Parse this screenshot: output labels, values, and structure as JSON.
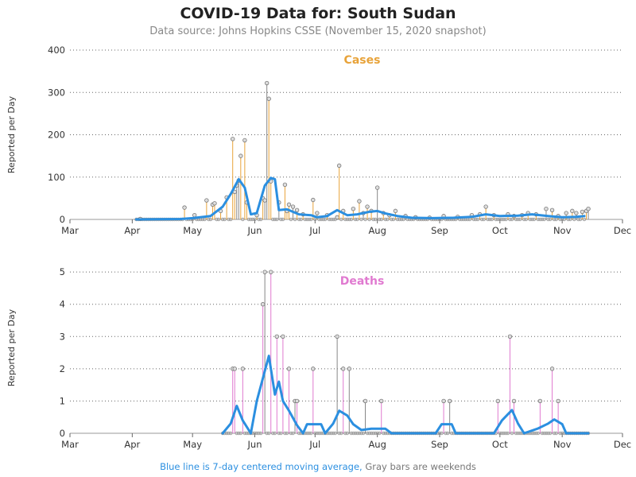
{
  "title": "COVID-19 Data for: South Sudan",
  "subtitle": "Data source: Johns Hopkins CSSE (November 15, 2020 snapshot)",
  "footnote": {
    "blue": "Blue line is 7-day centered moving average,",
    "gray": "Gray bars are weekends"
  },
  "colors": {
    "cases": "#e8a33a",
    "deaths": "#e07ad0",
    "average": "#2b8fe0",
    "weekend": "#888888"
  },
  "chart_data": [
    {
      "type": "bar",
      "title": "Cases",
      "ylabel": "Reported per Day",
      "xlabel": "",
      "x_ticks": [
        "Mar",
        "Apr",
        "May",
        "Jun",
        "Jul",
        "Aug",
        "Sep",
        "Oct",
        "Nov",
        "Dec"
      ],
      "y_ticks": [
        "0",
        "100",
        "200",
        "300",
        "400"
      ],
      "ylim": [
        0,
        400
      ],
      "xlim": [
        "2020-03-01",
        "2020-12-01"
      ],
      "grid": "horizontal dotted",
      "spikes": [
        {
          "date": "2020-04-05",
          "value": 1
        },
        {
          "date": "2020-04-27",
          "value": 28
        },
        {
          "date": "2020-05-02",
          "value": 10
        },
        {
          "date": "2020-05-08",
          "value": 45
        },
        {
          "date": "2020-05-11",
          "value": 35
        },
        {
          "date": "2020-05-12",
          "value": 38
        },
        {
          "date": "2020-05-15",
          "value": 20
        },
        {
          "date": "2020-05-18",
          "value": 52
        },
        {
          "date": "2020-05-21",
          "value": 190
        },
        {
          "date": "2020-05-22",
          "value": 65
        },
        {
          "date": "2020-05-23",
          "value": 80
        },
        {
          "date": "2020-05-24",
          "value": 92
        },
        {
          "date": "2020-05-25",
          "value": 150
        },
        {
          "date": "2020-05-27",
          "value": 187
        },
        {
          "date": "2020-05-28",
          "value": 40
        },
        {
          "date": "2020-06-02",
          "value": 10
        },
        {
          "date": "2020-06-05",
          "value": 50
        },
        {
          "date": "2020-06-06",
          "value": 45
        },
        {
          "date": "2020-06-07",
          "value": 322
        },
        {
          "date": "2020-06-08",
          "value": 285
        },
        {
          "date": "2020-06-09",
          "value": 90
        },
        {
          "date": "2020-06-13",
          "value": 40
        },
        {
          "date": "2020-06-16",
          "value": 82
        },
        {
          "date": "2020-06-17",
          "value": 20
        },
        {
          "date": "2020-06-18",
          "value": 35
        },
        {
          "date": "2020-06-20",
          "value": 30
        },
        {
          "date": "2020-06-22",
          "value": 22
        },
        {
          "date": "2020-06-25",
          "value": 12
        },
        {
          "date": "2020-06-30",
          "value": 46
        },
        {
          "date": "2020-07-02",
          "value": 15
        },
        {
          "date": "2020-07-07",
          "value": 10
        },
        {
          "date": "2020-07-12",
          "value": 5
        },
        {
          "date": "2020-07-13",
          "value": 127
        },
        {
          "date": "2020-07-15",
          "value": 20
        },
        {
          "date": "2020-07-20",
          "value": 25
        },
        {
          "date": "2020-07-23",
          "value": 43
        },
        {
          "date": "2020-07-25",
          "value": 15
        },
        {
          "date": "2020-07-27",
          "value": 30
        },
        {
          "date": "2020-07-29",
          "value": 20
        },
        {
          "date": "2020-08-01",
          "value": 75
        },
        {
          "date": "2020-08-04",
          "value": 15
        },
        {
          "date": "2020-08-07",
          "value": 10
        },
        {
          "date": "2020-08-10",
          "value": 20
        },
        {
          "date": "2020-08-15",
          "value": 8
        },
        {
          "date": "2020-08-20",
          "value": 5
        },
        {
          "date": "2020-08-27",
          "value": 4
        },
        {
          "date": "2020-09-03",
          "value": 8
        },
        {
          "date": "2020-09-10",
          "value": 6
        },
        {
          "date": "2020-09-17",
          "value": 10
        },
        {
          "date": "2020-09-21",
          "value": 12
        },
        {
          "date": "2020-09-24",
          "value": 30
        },
        {
          "date": "2020-09-28",
          "value": 10
        },
        {
          "date": "2020-10-05",
          "value": 12
        },
        {
          "date": "2020-10-08",
          "value": 8
        },
        {
          "date": "2020-10-12",
          "value": 10
        },
        {
          "date": "2020-10-15",
          "value": 15
        },
        {
          "date": "2020-10-19",
          "value": 12
        },
        {
          "date": "2020-10-24",
          "value": 25
        },
        {
          "date": "2020-10-27",
          "value": 22
        },
        {
          "date": "2020-10-30",
          "value": 8
        },
        {
          "date": "2020-11-03",
          "value": 15
        },
        {
          "date": "2020-11-06",
          "value": 20
        },
        {
          "date": "2020-11-08",
          "value": 15
        },
        {
          "date": "2020-11-11",
          "value": 18
        },
        {
          "date": "2020-11-13",
          "value": 20
        },
        {
          "date": "2020-11-14",
          "value": 25
        }
      ],
      "moving_average": [
        {
          "date": "2020-04-03",
          "value": 0
        },
        {
          "date": "2020-04-25",
          "value": 1
        },
        {
          "date": "2020-05-01",
          "value": 3
        },
        {
          "date": "2020-05-10",
          "value": 8
        },
        {
          "date": "2020-05-16",
          "value": 30
        },
        {
          "date": "2020-05-20",
          "value": 60
        },
        {
          "date": "2020-05-24",
          "value": 95
        },
        {
          "date": "2020-05-27",
          "value": 75
        },
        {
          "date": "2020-05-30",
          "value": 12
        },
        {
          "date": "2020-06-02",
          "value": 15
        },
        {
          "date": "2020-06-06",
          "value": 80
        },
        {
          "date": "2020-06-09",
          "value": 98
        },
        {
          "date": "2020-06-11",
          "value": 95
        },
        {
          "date": "2020-06-13",
          "value": 22
        },
        {
          "date": "2020-06-17",
          "value": 24
        },
        {
          "date": "2020-06-23",
          "value": 12
        },
        {
          "date": "2020-06-29",
          "value": 10
        },
        {
          "date": "2020-07-02",
          "value": 5
        },
        {
          "date": "2020-07-07",
          "value": 8
        },
        {
          "date": "2020-07-12",
          "value": 22
        },
        {
          "date": "2020-07-17",
          "value": 10
        },
        {
          "date": "2020-07-22",
          "value": 12
        },
        {
          "date": "2020-07-28",
          "value": 18
        },
        {
          "date": "2020-08-01",
          "value": 20
        },
        {
          "date": "2020-08-05",
          "value": 14
        },
        {
          "date": "2020-08-11",
          "value": 8
        },
        {
          "date": "2020-08-18",
          "value": 4
        },
        {
          "date": "2020-08-28",
          "value": 3
        },
        {
          "date": "2020-09-08",
          "value": 4
        },
        {
          "date": "2020-09-17",
          "value": 6
        },
        {
          "date": "2020-09-24",
          "value": 12
        },
        {
          "date": "2020-10-01",
          "value": 8
        },
        {
          "date": "2020-10-10",
          "value": 9
        },
        {
          "date": "2020-10-17",
          "value": 12
        },
        {
          "date": "2020-10-25",
          "value": 8
        },
        {
          "date": "2020-11-01",
          "value": 5
        },
        {
          "date": "2020-11-08",
          "value": 6
        },
        {
          "date": "2020-11-12",
          "value": 8
        }
      ]
    },
    {
      "type": "bar",
      "title": "Deaths",
      "ylabel": "Reported per Day",
      "xlabel": "",
      "x_ticks": [
        "Mar",
        "Apr",
        "May",
        "Jun",
        "Jul",
        "Aug",
        "Sep",
        "Oct",
        "Nov",
        "Dec"
      ],
      "y_ticks": [
        "0",
        "1",
        "2",
        "3",
        "4",
        "5"
      ],
      "ylim": [
        0,
        5.3
      ],
      "xlim": [
        "2020-03-01",
        "2020-12-01"
      ],
      "grid": "horizontal dotted",
      "spikes": [
        {
          "date": "2020-05-21",
          "value": 2
        },
        {
          "date": "2020-05-22",
          "value": 2
        },
        {
          "date": "2020-05-26",
          "value": 2
        },
        {
          "date": "2020-06-05",
          "value": 4
        },
        {
          "date": "2020-06-06",
          "value": 5
        },
        {
          "date": "2020-06-09",
          "value": 5
        },
        {
          "date": "2020-06-12",
          "value": 3
        },
        {
          "date": "2020-06-15",
          "value": 3
        },
        {
          "date": "2020-06-18",
          "value": 2
        },
        {
          "date": "2020-06-21",
          "value": 1
        },
        {
          "date": "2020-06-22",
          "value": 1
        },
        {
          "date": "2020-06-30",
          "value": 2
        },
        {
          "date": "2020-07-12",
          "value": 3
        },
        {
          "date": "2020-07-15",
          "value": 2
        },
        {
          "date": "2020-07-18",
          "value": 2
        },
        {
          "date": "2020-07-26",
          "value": 1
        },
        {
          "date": "2020-08-03",
          "value": 1
        },
        {
          "date": "2020-09-03",
          "value": 1
        },
        {
          "date": "2020-09-06",
          "value": 1
        },
        {
          "date": "2020-09-30",
          "value": 1
        },
        {
          "date": "2020-10-06",
          "value": 3
        },
        {
          "date": "2020-10-08",
          "value": 1
        },
        {
          "date": "2020-10-21",
          "value": 1
        },
        {
          "date": "2020-10-27",
          "value": 2
        },
        {
          "date": "2020-10-30",
          "value": 1
        }
      ],
      "moving_average": [
        {
          "date": "2020-05-16",
          "value": 0
        },
        {
          "date": "2020-05-20",
          "value": 0.3
        },
        {
          "date": "2020-05-23",
          "value": 0.85
        },
        {
          "date": "2020-05-26",
          "value": 0.4
        },
        {
          "date": "2020-05-30",
          "value": 0
        },
        {
          "date": "2020-06-02",
          "value": 1.0
        },
        {
          "date": "2020-06-05",
          "value": 1.7
        },
        {
          "date": "2020-06-08",
          "value": 2.4
        },
        {
          "date": "2020-06-11",
          "value": 1.2
        },
        {
          "date": "2020-06-13",
          "value": 1.6
        },
        {
          "date": "2020-06-15",
          "value": 1.0
        },
        {
          "date": "2020-06-18",
          "value": 0.7
        },
        {
          "date": "2020-06-22",
          "value": 0.25
        },
        {
          "date": "2020-06-25",
          "value": 0
        },
        {
          "date": "2020-06-27",
          "value": 0.28
        },
        {
          "date": "2020-07-04",
          "value": 0.28
        },
        {
          "date": "2020-07-06",
          "value": 0
        },
        {
          "date": "2020-07-10",
          "value": 0.3
        },
        {
          "date": "2020-07-13",
          "value": 0.7
        },
        {
          "date": "2020-07-17",
          "value": 0.55
        },
        {
          "date": "2020-07-20",
          "value": 0.28
        },
        {
          "date": "2020-07-24",
          "value": 0.1
        },
        {
          "date": "2020-07-29",
          "value": 0.14
        },
        {
          "date": "2020-08-05",
          "value": 0.14
        },
        {
          "date": "2020-08-08",
          "value": 0
        },
        {
          "date": "2020-08-30",
          "value": 0
        },
        {
          "date": "2020-09-02",
          "value": 0.28
        },
        {
          "date": "2020-09-07",
          "value": 0.28
        },
        {
          "date": "2020-09-09",
          "value": 0
        },
        {
          "date": "2020-09-28",
          "value": 0
        },
        {
          "date": "2020-10-02",
          "value": 0.4
        },
        {
          "date": "2020-10-07",
          "value": 0.72
        },
        {
          "date": "2020-10-10",
          "value": 0.3
        },
        {
          "date": "2020-10-13",
          "value": 0
        },
        {
          "date": "2020-10-20",
          "value": 0.15
        },
        {
          "date": "2020-10-25",
          "value": 0.3
        },
        {
          "date": "2020-10-28",
          "value": 0.43
        },
        {
          "date": "2020-11-01",
          "value": 0.28
        },
        {
          "date": "2020-11-03",
          "value": 0
        },
        {
          "date": "2020-11-14",
          "value": 0
        }
      ]
    }
  ]
}
